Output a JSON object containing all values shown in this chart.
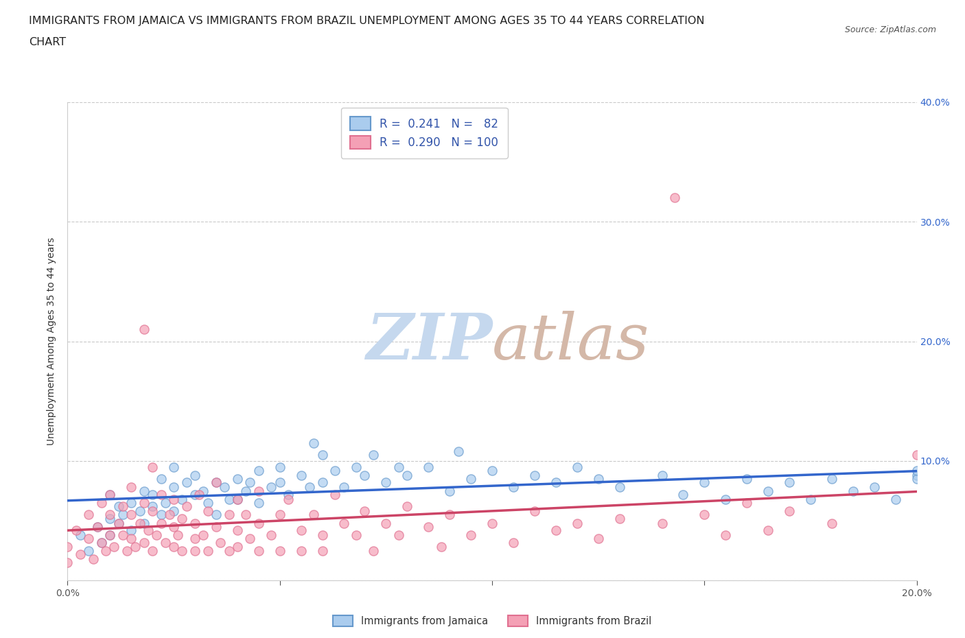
{
  "title_line1": "IMMIGRANTS FROM JAMAICA VS IMMIGRANTS FROM BRAZIL UNEMPLOYMENT AMONG AGES 35 TO 44 YEARS CORRELATION",
  "title_line2": "CHART",
  "source": "Source: ZipAtlas.com",
  "ylabel": "Unemployment Among Ages 35 to 44 years",
  "xlim": [
    0.0,
    0.2
  ],
  "ylim": [
    0.0,
    0.4
  ],
  "xticks": [
    0.0,
    0.05,
    0.1,
    0.15,
    0.2
  ],
  "yticks": [
    0.0,
    0.1,
    0.2,
    0.3,
    0.4
  ],
  "jamaica_color": "#aaccee",
  "brazil_color": "#f4a0b5",
  "jamaica_edge_color": "#6699cc",
  "brazil_edge_color": "#e07090",
  "jamaica_R": 0.241,
  "jamaica_N": 82,
  "brazil_R": 0.29,
  "brazil_N": 100,
  "jamaica_label": "Immigrants from Jamaica",
  "brazil_label": "Immigrants from Brazil",
  "trend_jamaica_color": "#3366cc",
  "trend_brazil_color": "#cc4466",
  "watermark": "ZIPatlas",
  "watermark_color_zip": "#c5d8ee",
  "watermark_color_atlas": "#d4b8a8",
  "legend_text_color": "#3355aa",
  "tick_color": "#3366cc",
  "title_fontsize": 11.5,
  "axis_label_fontsize": 10,
  "tick_fontsize": 10,
  "background_color": "#ffffff",
  "grid_color": "#bbbbbb",
  "jamaica_scatter": [
    [
      0.003,
      0.038
    ],
    [
      0.005,
      0.025
    ],
    [
      0.007,
      0.045
    ],
    [
      0.008,
      0.032
    ],
    [
      0.01,
      0.052
    ],
    [
      0.01,
      0.038
    ],
    [
      0.01,
      0.072
    ],
    [
      0.012,
      0.048
    ],
    [
      0.012,
      0.062
    ],
    [
      0.013,
      0.055
    ],
    [
      0.015,
      0.065
    ],
    [
      0.015,
      0.042
    ],
    [
      0.017,
      0.058
    ],
    [
      0.018,
      0.075
    ],
    [
      0.018,
      0.048
    ],
    [
      0.02,
      0.062
    ],
    [
      0.02,
      0.072
    ],
    [
      0.022,
      0.055
    ],
    [
      0.022,
      0.085
    ],
    [
      0.023,
      0.065
    ],
    [
      0.025,
      0.058
    ],
    [
      0.025,
      0.078
    ],
    [
      0.025,
      0.095
    ],
    [
      0.027,
      0.068
    ],
    [
      0.028,
      0.082
    ],
    [
      0.03,
      0.072
    ],
    [
      0.03,
      0.088
    ],
    [
      0.032,
      0.075
    ],
    [
      0.033,
      0.065
    ],
    [
      0.035,
      0.082
    ],
    [
      0.035,
      0.055
    ],
    [
      0.037,
      0.078
    ],
    [
      0.038,
      0.068
    ],
    [
      0.04,
      0.085
    ],
    [
      0.04,
      0.068
    ],
    [
      0.042,
      0.075
    ],
    [
      0.043,
      0.082
    ],
    [
      0.045,
      0.092
    ],
    [
      0.045,
      0.065
    ],
    [
      0.048,
      0.078
    ],
    [
      0.05,
      0.095
    ],
    [
      0.05,
      0.082
    ],
    [
      0.052,
      0.072
    ],
    [
      0.055,
      0.088
    ],
    [
      0.057,
      0.078
    ],
    [
      0.058,
      0.115
    ],
    [
      0.06,
      0.105
    ],
    [
      0.06,
      0.082
    ],
    [
      0.063,
      0.092
    ],
    [
      0.065,
      0.078
    ],
    [
      0.068,
      0.095
    ],
    [
      0.07,
      0.088
    ],
    [
      0.072,
      0.105
    ],
    [
      0.075,
      0.082
    ],
    [
      0.078,
      0.095
    ],
    [
      0.08,
      0.088
    ],
    [
      0.085,
      0.095
    ],
    [
      0.09,
      0.075
    ],
    [
      0.092,
      0.108
    ],
    [
      0.095,
      0.085
    ],
    [
      0.1,
      0.092
    ],
    [
      0.105,
      0.078
    ],
    [
      0.11,
      0.088
    ],
    [
      0.115,
      0.082
    ],
    [
      0.12,
      0.095
    ],
    [
      0.125,
      0.085
    ],
    [
      0.13,
      0.078
    ],
    [
      0.14,
      0.088
    ],
    [
      0.145,
      0.072
    ],
    [
      0.15,
      0.082
    ],
    [
      0.155,
      0.068
    ],
    [
      0.16,
      0.085
    ],
    [
      0.165,
      0.075
    ],
    [
      0.17,
      0.082
    ],
    [
      0.175,
      0.068
    ],
    [
      0.18,
      0.085
    ],
    [
      0.185,
      0.075
    ],
    [
      0.19,
      0.078
    ],
    [
      0.195,
      0.068
    ],
    [
      0.2,
      0.088
    ],
    [
      0.2,
      0.085
    ],
    [
      0.2,
      0.092
    ]
  ],
  "brazil_scatter": [
    [
      0.0,
      0.015
    ],
    [
      0.0,
      0.028
    ],
    [
      0.002,
      0.042
    ],
    [
      0.003,
      0.022
    ],
    [
      0.005,
      0.035
    ],
    [
      0.005,
      0.055
    ],
    [
      0.006,
      0.018
    ],
    [
      0.007,
      0.045
    ],
    [
      0.008,
      0.032
    ],
    [
      0.008,
      0.065
    ],
    [
      0.009,
      0.025
    ],
    [
      0.01,
      0.038
    ],
    [
      0.01,
      0.055
    ],
    [
      0.01,
      0.072
    ],
    [
      0.011,
      0.028
    ],
    [
      0.012,
      0.048
    ],
    [
      0.013,
      0.038
    ],
    [
      0.013,
      0.062
    ],
    [
      0.014,
      0.025
    ],
    [
      0.015,
      0.055
    ],
    [
      0.015,
      0.035
    ],
    [
      0.015,
      0.078
    ],
    [
      0.016,
      0.028
    ],
    [
      0.017,
      0.048
    ],
    [
      0.018,
      0.065
    ],
    [
      0.018,
      0.032
    ],
    [
      0.018,
      0.21
    ],
    [
      0.019,
      0.042
    ],
    [
      0.02,
      0.058
    ],
    [
      0.02,
      0.025
    ],
    [
      0.02,
      0.095
    ],
    [
      0.021,
      0.038
    ],
    [
      0.022,
      0.048
    ],
    [
      0.022,
      0.072
    ],
    [
      0.023,
      0.032
    ],
    [
      0.024,
      0.055
    ],
    [
      0.025,
      0.045
    ],
    [
      0.025,
      0.028
    ],
    [
      0.025,
      0.068
    ],
    [
      0.026,
      0.038
    ],
    [
      0.027,
      0.052
    ],
    [
      0.027,
      0.025
    ],
    [
      0.028,
      0.062
    ],
    [
      0.03,
      0.035
    ],
    [
      0.03,
      0.048
    ],
    [
      0.03,
      0.025
    ],
    [
      0.031,
      0.072
    ],
    [
      0.032,
      0.038
    ],
    [
      0.033,
      0.058
    ],
    [
      0.033,
      0.025
    ],
    [
      0.035,
      0.045
    ],
    [
      0.035,
      0.082
    ],
    [
      0.036,
      0.032
    ],
    [
      0.038,
      0.055
    ],
    [
      0.038,
      0.025
    ],
    [
      0.04,
      0.042
    ],
    [
      0.04,
      0.068
    ],
    [
      0.04,
      0.028
    ],
    [
      0.042,
      0.055
    ],
    [
      0.043,
      0.035
    ],
    [
      0.045,
      0.048
    ],
    [
      0.045,
      0.025
    ],
    [
      0.045,
      0.075
    ],
    [
      0.048,
      0.038
    ],
    [
      0.05,
      0.055
    ],
    [
      0.05,
      0.025
    ],
    [
      0.052,
      0.068
    ],
    [
      0.055,
      0.042
    ],
    [
      0.055,
      0.025
    ],
    [
      0.058,
      0.055
    ],
    [
      0.06,
      0.038
    ],
    [
      0.06,
      0.025
    ],
    [
      0.063,
      0.072
    ],
    [
      0.065,
      0.048
    ],
    [
      0.068,
      0.038
    ],
    [
      0.07,
      0.058
    ],
    [
      0.072,
      0.025
    ],
    [
      0.075,
      0.048
    ],
    [
      0.078,
      0.038
    ],
    [
      0.08,
      0.062
    ],
    [
      0.085,
      0.045
    ],
    [
      0.088,
      0.028
    ],
    [
      0.09,
      0.055
    ],
    [
      0.095,
      0.038
    ],
    [
      0.1,
      0.048
    ],
    [
      0.105,
      0.032
    ],
    [
      0.11,
      0.058
    ],
    [
      0.115,
      0.042
    ],
    [
      0.12,
      0.048
    ],
    [
      0.125,
      0.035
    ],
    [
      0.13,
      0.052
    ],
    [
      0.14,
      0.048
    ],
    [
      0.143,
      0.32
    ],
    [
      0.15,
      0.055
    ],
    [
      0.155,
      0.038
    ],
    [
      0.16,
      0.065
    ],
    [
      0.165,
      0.042
    ],
    [
      0.17,
      0.058
    ],
    [
      0.18,
      0.048
    ],
    [
      0.2,
      0.105
    ]
  ]
}
